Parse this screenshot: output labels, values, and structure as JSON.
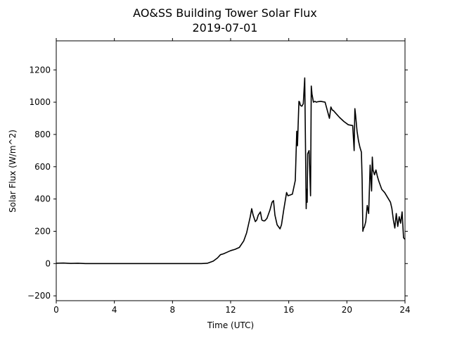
{
  "chart_data": {
    "type": "line",
    "title": "AO&SS Building Tower Solar Flux",
    "subtitle": "2019-07-01",
    "xlabel": "Time (UTC)",
    "ylabel": "Solar Flux (W/m^2)",
    "xlim": [
      0,
      24
    ],
    "ylim": [
      -230,
      1380
    ],
    "x_ticks": [
      0,
      4,
      8,
      12,
      16,
      20,
      24
    ],
    "y_ticks": [
      -200,
      0,
      200,
      400,
      600,
      800,
      1000,
      1200
    ],
    "grid": false,
    "series_color": "#000000",
    "series": [
      {
        "x": [
          0,
          0.5,
          1,
          1.5,
          2,
          4,
          6,
          8,
          10,
          10.4,
          10.8,
          11.1,
          11.3,
          11.5,
          11.7,
          12.0,
          12.3,
          12.6,
          12.9,
          13.1,
          13.25,
          13.35,
          13.45,
          13.55,
          13.7,
          13.8,
          13.9,
          14.05,
          14.15,
          14.25,
          14.35,
          14.5,
          14.7,
          14.85,
          14.95,
          15.05,
          15.2,
          15.4,
          15.5,
          15.65,
          15.85,
          15.95,
          16.1,
          16.25,
          16.45,
          16.55,
          16.6,
          16.7,
          16.75,
          16.8,
          16.9,
          17.0,
          17.1,
          17.2,
          17.23,
          17.27,
          17.3,
          17.4,
          17.5,
          17.55,
          17.6,
          17.7,
          17.8,
          17.9,
          18.0,
          18.2,
          18.5,
          18.8,
          18.9,
          19.0,
          19.05,
          19.1,
          19.3,
          19.5,
          19.8,
          20.1,
          20.4,
          20.5,
          20.55,
          20.6,
          20.7,
          20.8,
          20.9,
          21.0,
          21.05,
          21.1,
          21.15,
          21.2,
          21.3,
          21.4,
          21.5,
          21.6,
          21.7,
          21.75,
          21.8,
          21.9,
          22.0,
          22.1,
          22.2,
          22.3,
          22.4,
          22.6,
          22.8,
          23.0,
          23.1,
          23.2,
          23.3,
          23.4,
          23.5,
          23.6,
          23.7,
          23.8,
          23.9,
          24.0
        ],
        "values": [
          2,
          3,
          1,
          2,
          0,
          0,
          0,
          0,
          0,
          2,
          15,
          35,
          55,
          60,
          68,
          80,
          88,
          100,
          140,
          190,
          250,
          290,
          340,
          300,
          260,
          270,
          300,
          320,
          270,
          265,
          265,
          280,
          330,
          380,
          390,
          300,
          240,
          215,
          240,
          330,
          440,
          420,
          425,
          430,
          515,
          820,
          730,
          1005,
          1000,
          980,
          975,
          990,
          1150,
          340,
          460,
          380,
          680,
          700,
          420,
          1100,
          1050,
          1000,
          1005,
          1000,
          1003,
          1005,
          1000,
          900,
          970,
          950,
          950,
          945,
          925,
          905,
          880,
          860,
          855,
          700,
          960,
          920,
          820,
          760,
          720,
          690,
          520,
          200,
          220,
          225,
          260,
          360,
          310,
          610,
          450,
          660,
          580,
          550,
          580,
          540,
          510,
          485,
          460,
          440,
          410,
          380,
          340,
          270,
          220,
          310,
          230,
          290,
          250,
          320,
          160,
          150
        ]
      }
    ]
  }
}
